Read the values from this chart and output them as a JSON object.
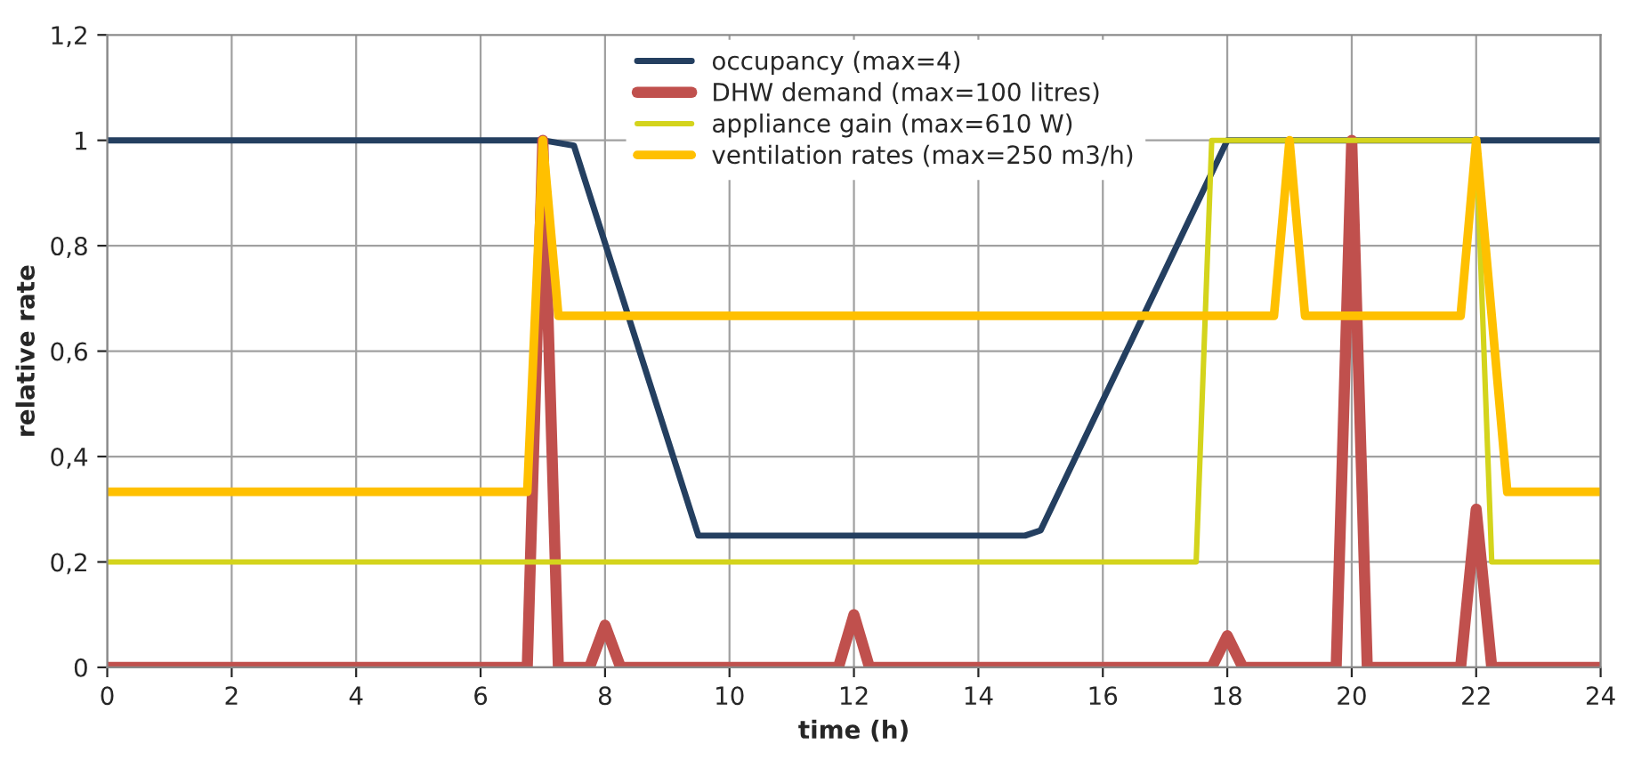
{
  "chart_data": {
    "type": "line",
    "xlabel": "time (h)",
    "ylabel": "relative rate",
    "xlim": [
      0,
      24
    ],
    "xticks": [
      0,
      2,
      4,
      6,
      8,
      10,
      12,
      14,
      16,
      18,
      20,
      22,
      24
    ],
    "ylim": [
      0,
      1.2
    ],
    "yticks": [
      {
        "value": 0,
        "label": "0"
      },
      {
        "value": 0.2,
        "label": "0,2"
      },
      {
        "value": 0.4,
        "label": "0,4"
      },
      {
        "value": 0.6,
        "label": "0,6"
      },
      {
        "value": 0.8,
        "label": "0,8"
      },
      {
        "value": 1,
        "label": "1"
      },
      {
        "value": 1.2,
        "label": "1,2"
      }
    ],
    "grid": true,
    "legend": "top",
    "marker": "none",
    "line_style": "solid",
    "series": [
      {
        "name": "occupancy (max=4)",
        "color": "#243f60",
        "x": [
          0,
          7,
          7.5,
          9.5,
          14.75,
          15,
          18,
          24
        ],
        "values": [
          1,
          1,
          0.99,
          0.25,
          0.25,
          0.26,
          1,
          1
        ]
      },
      {
        "name": "DHW demand (max=100 litres)",
        "color": "#c0504d",
        "x": [
          0,
          6.75,
          7,
          7.25,
          7.75,
          8,
          8.25,
          11.75,
          12,
          12.25,
          17.75,
          18,
          18.25,
          19.75,
          20,
          20.25,
          21.75,
          22,
          22.25,
          24
        ],
        "values": [
          0,
          0,
          1,
          0,
          0,
          0.08,
          0,
          0,
          0.1,
          0,
          0,
          0.06,
          0,
          0,
          1,
          0,
          0,
          0.3,
          0,
          0
        ]
      },
      {
        "name": "appliance gain (max=610 W)",
        "color": "#d4d41c",
        "x": [
          0,
          17.5,
          17.75,
          22,
          22.25,
          24
        ],
        "values": [
          0.2,
          0.2,
          1,
          1,
          0.2,
          0.2
        ]
      },
      {
        "name": "ventilation rates (max=250 m3/h)",
        "color": "#ffc000",
        "x": [
          0,
          6.75,
          7,
          7.25,
          18.75,
          19,
          19.25,
          21.75,
          22,
          22.5,
          24
        ],
        "values": [
          0.333,
          0.333,
          1,
          0.667,
          0.667,
          1,
          0.667,
          0.667,
          1,
          0.333,
          0.333
        ]
      }
    ]
  }
}
